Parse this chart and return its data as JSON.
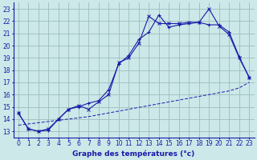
{
  "xlabel": "Graphe des températures (°c)",
  "xlim": [
    -0.5,
    23.5
  ],
  "ylim": [
    12.5,
    23.5
  ],
  "yticks": [
    13,
    14,
    15,
    16,
    17,
    18,
    19,
    20,
    21,
    22,
    23
  ],
  "xticks": [
    0,
    1,
    2,
    3,
    4,
    5,
    6,
    7,
    8,
    9,
    10,
    11,
    12,
    13,
    14,
    15,
    16,
    17,
    18,
    19,
    20,
    21,
    22,
    23
  ],
  "bg_color": "#cce8e8",
  "grid_color": "#9bbdbd",
  "line_color": "#1a1aaa",
  "curve1_x": [
    0,
    1,
    2,
    3,
    4,
    5,
    6,
    7,
    8,
    9,
    10,
    11,
    12,
    13,
    14,
    15,
    16,
    17,
    18,
    19,
    20,
    21,
    22,
    23
  ],
  "curve1_y": [
    14.5,
    13.2,
    13.0,
    13.1,
    14.0,
    14.8,
    15.0,
    15.3,
    15.5,
    16.4,
    18.5,
    19.2,
    20.5,
    21.1,
    22.5,
    21.5,
    21.7,
    21.8,
    21.9,
    21.7,
    21.7,
    21.1,
    19.1,
    17.4
  ],
  "curve2_x": [
    0,
    1,
    2,
    3,
    4,
    5,
    6,
    7,
    8,
    9,
    10,
    11,
    12,
    13,
    14,
    15,
    16,
    17,
    18,
    19,
    20,
    21,
    22,
    23
  ],
  "curve2_y": [
    14.5,
    13.2,
    13.0,
    13.2,
    14.0,
    14.8,
    15.1,
    14.8,
    15.4,
    16.0,
    18.6,
    19.0,
    20.2,
    22.4,
    21.8,
    21.8,
    21.8,
    21.9,
    21.9,
    23.0,
    21.6,
    20.9,
    19.0,
    17.4
  ],
  "curve3_x": [
    0,
    1,
    2,
    3,
    4,
    5,
    6,
    7,
    8,
    9,
    10,
    11,
    12,
    13,
    14,
    15,
    16,
    17,
    18,
    19,
    20,
    21,
    22,
    23
  ],
  "curve3_y": [
    13.5,
    13.6,
    13.7,
    13.8,
    13.9,
    14.0,
    14.1,
    14.2,
    14.35,
    14.5,
    14.65,
    14.8,
    14.95,
    15.1,
    15.25,
    15.4,
    15.55,
    15.7,
    15.85,
    16.0,
    16.15,
    16.3,
    16.55,
    17.0
  ],
  "axis_label_fontsize": 6.5,
  "tick_fontsize": 5.5
}
